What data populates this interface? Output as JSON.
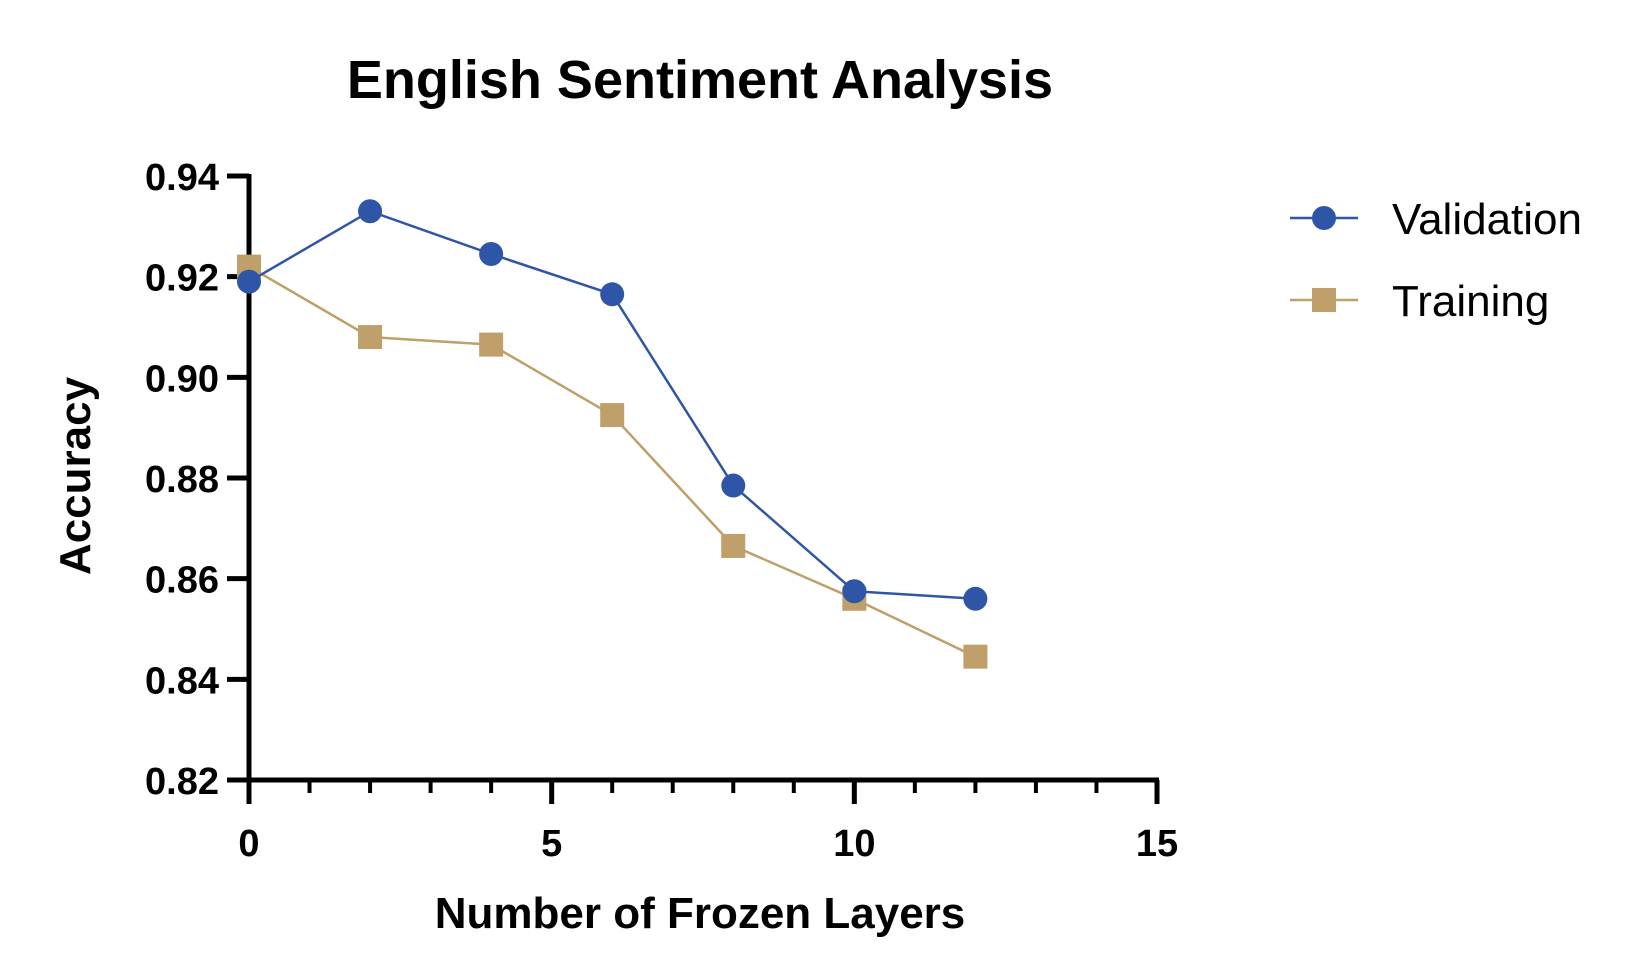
{
  "chart_data": {
    "type": "line",
    "title": "English  Sentiment Analysis",
    "xlabel": "Number of Frozen  Layers",
    "ylabel": "Accuracy",
    "xlim": [
      0,
      15
    ],
    "ylim": [
      0.82,
      0.94
    ],
    "x_ticks": [
      "0",
      "5",
      "10",
      "15"
    ],
    "x_tick_values": [
      0,
      5,
      10,
      15
    ],
    "x_minor_ticks": [
      1,
      2,
      3,
      4,
      6,
      7,
      8,
      9,
      11,
      12,
      13,
      14
    ],
    "y_ticks": [
      "0.82",
      "0.84",
      "0.86",
      "0.88",
      "0.90",
      "0.92",
      "0.94"
    ],
    "y_tick_values": [
      0.82,
      0.84,
      0.86,
      0.88,
      0.9,
      0.92,
      0.94
    ],
    "grid": false,
    "legend_position": "right",
    "series": [
      {
        "name": "Validation",
        "marker": "circle",
        "color": "#2f56a6",
        "x": [
          0,
          2,
          4,
          6,
          8,
          10,
          12
        ],
        "y": [
          0.919,
          0.933,
          0.9245,
          0.9165,
          0.8785,
          0.8575,
          0.856
        ]
      },
      {
        "name": "Training",
        "marker": "square",
        "color": "#bf9f6a",
        "x": [
          0,
          2,
          4,
          6,
          8,
          10,
          12
        ],
        "y": [
          0.922,
          0.908,
          0.9065,
          0.8925,
          0.8665,
          0.856,
          0.8445
        ]
      }
    ]
  }
}
